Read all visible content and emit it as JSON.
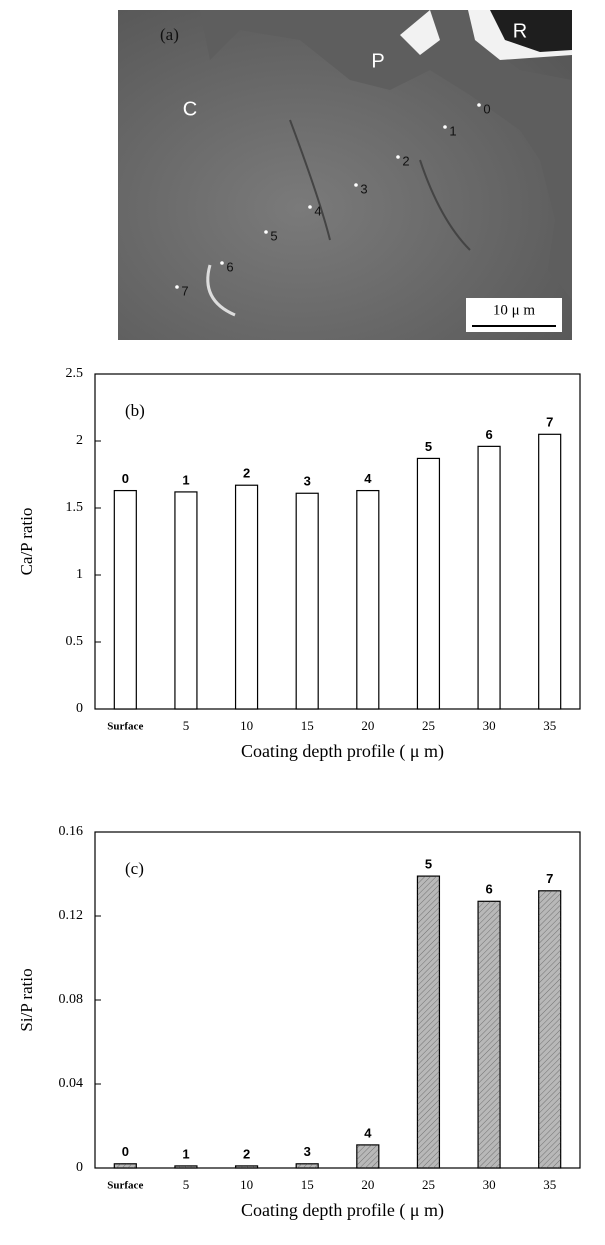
{
  "micrograph": {
    "panel_label": "(a)",
    "regions": [
      "C",
      "P",
      "R"
    ],
    "points": [
      "0",
      "1",
      "2",
      "3",
      "4",
      "5",
      "6",
      "7"
    ],
    "scale_bar": "10 μ m"
  },
  "chart_data": [
    {
      "type": "bar",
      "panel_label": "(b)",
      "ylabel": "Ca/P ratio",
      "xlabel": "Coating depth profile ( μ m)",
      "categories": [
        "Surface",
        "5",
        "10",
        "15",
        "20",
        "25",
        "30",
        "35"
      ],
      "values": [
        1.63,
        1.62,
        1.67,
        1.61,
        1.63,
        1.87,
        1.96,
        2.05
      ],
      "annotations": [
        "0",
        "1",
        "2",
        "3",
        "4",
        "5",
        "6",
        "7"
      ],
      "ylim": [
        0,
        2.5
      ],
      "yticks": [
        0,
        0.5,
        1,
        1.5,
        2,
        2.5
      ],
      "color": "#ffffff",
      "hatch": false
    },
    {
      "type": "bar",
      "panel_label": "(c)",
      "ylabel": "Si/P ratio",
      "xlabel": "Coating depth profile ( μ m)",
      "categories": [
        "Surface",
        "5",
        "10",
        "15",
        "20",
        "25",
        "30",
        "35"
      ],
      "values": [
        0.002,
        0.001,
        0.001,
        0.002,
        0.011,
        0.139,
        0.127,
        0.132
      ],
      "annotations": [
        "0",
        "1",
        "2",
        "3",
        "4",
        "5",
        "6",
        "7"
      ],
      "ylim": [
        0,
        0.16
      ],
      "yticks": [
        0,
        0.04,
        0.08,
        0.12,
        0.16
      ],
      "color": "#b8b8b8",
      "hatch": true
    }
  ]
}
